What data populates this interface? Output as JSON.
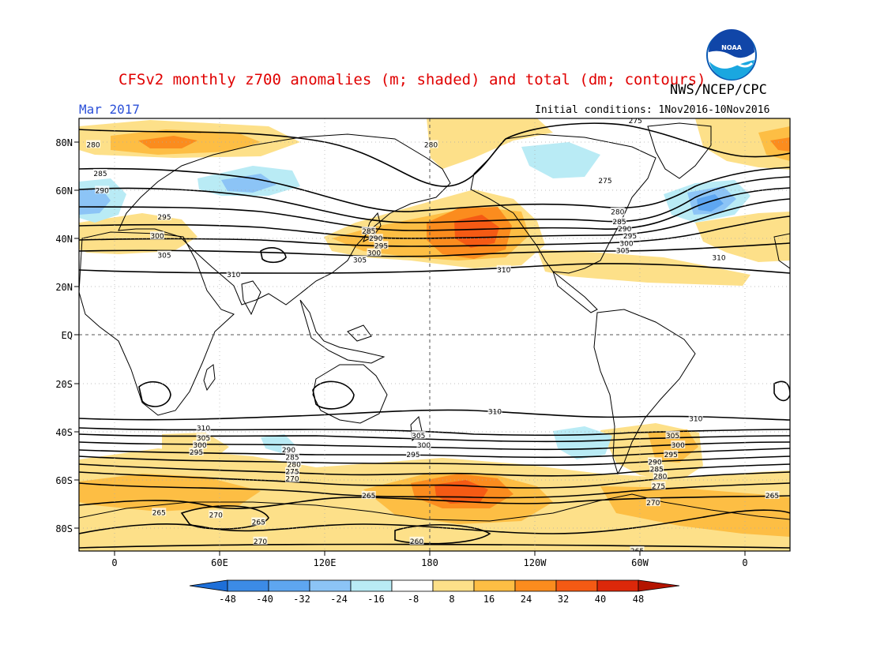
{
  "header": {
    "title": "CFSv2 monthly z700 anomalies (m; shaded) and total (dm; contours)",
    "agency": "NWS/NCEP/CPC",
    "logo_text": "NOAA",
    "month": "Mar 2017",
    "initial_conditions": "Initial conditions: 1Nov2016-10Nov2016"
  },
  "axes": {
    "lat_labels": [
      "80N",
      "60N",
      "40N",
      "20N",
      "EQ",
      "20S",
      "40S",
      "60S",
      "80S"
    ],
    "lat_values": [
      80,
      60,
      40,
      20,
      0,
      -20,
      -40,
      -60,
      -80
    ],
    "lon_labels": [
      "0",
      "60E",
      "120E",
      "180",
      "120W",
      "60W",
      "0"
    ],
    "lon_values": [
      0,
      60,
      120,
      180,
      240,
      300,
      360
    ],
    "lon_range": [
      -20,
      380
    ],
    "lat_range": [
      -90,
      90
    ]
  },
  "colorbar": {
    "ticks": [
      "-48",
      "-40",
      "-32",
      "-24",
      "-16",
      "-8",
      "8",
      "16",
      "24",
      "32",
      "40",
      "48"
    ],
    "colors": [
      "#1e6fd8",
      "#3c8be6",
      "#5ea6f0",
      "#8cc4f6",
      "#b9ebf5",
      "#ffffff",
      "#fde089",
      "#fdbe44",
      "#fb8c1e",
      "#f55a14",
      "#dc280a",
      "#b41400"
    ]
  },
  "contour_labels": [
    {
      "text": "280",
      "lon": -12,
      "lat": 79
    },
    {
      "text": "285",
      "lon": -8,
      "lat": 67
    },
    {
      "text": "290",
      "lon": -7,
      "lat": 60
    },
    {
      "text": "295",
      "lon": 28,
      "lat": 49
    },
    {
      "text": "300",
      "lon": 24,
      "lat": 41
    },
    {
      "text": "305",
      "lon": 28,
      "lat": 33
    },
    {
      "text": "310",
      "lon": 67,
      "lat": 25
    },
    {
      "text": "280",
      "lon": 178,
      "lat": 79
    },
    {
      "text": "285",
      "lon": 143,
      "lat": 43
    },
    {
      "text": "290",
      "lon": 147,
      "lat": 40
    },
    {
      "text": "295",
      "lon": 150,
      "lat": 37
    },
    {
      "text": "300",
      "lon": 146,
      "lat": 34
    },
    {
      "text": "305",
      "lon": 138,
      "lat": 31
    },
    {
      "text": "310",
      "lon": 219,
      "lat": 27
    },
    {
      "text": "275",
      "lon": 276,
      "lat": 64
    },
    {
      "text": "280",
      "lon": 283,
      "lat": 51
    },
    {
      "text": "285",
      "lon": 284,
      "lat": 47
    },
    {
      "text": "290",
      "lon": 287,
      "lat": 44
    },
    {
      "text": "295",
      "lon": 290,
      "lat": 41
    },
    {
      "text": "300",
      "lon": 288,
      "lat": 38
    },
    {
      "text": "305",
      "lon": 286,
      "lat": 35
    },
    {
      "text": "310",
      "lon": 340,
      "lat": 32
    },
    {
      "text": "275",
      "lon": 293,
      "lat": 89
    },
    {
      "text": "310",
      "lon": 50,
      "lat": -39
    },
    {
      "text": "305",
      "lon": 50,
      "lat": -43
    },
    {
      "text": "300",
      "lon": 48,
      "lat": -46
    },
    {
      "text": "295",
      "lon": 46,
      "lat": -49
    },
    {
      "text": "290",
      "lon": 98,
      "lat": -48
    },
    {
      "text": "285",
      "lon": 100,
      "lat": -51
    },
    {
      "text": "280",
      "lon": 101,
      "lat": -54
    },
    {
      "text": "275",
      "lon": 100,
      "lat": -57
    },
    {
      "text": "270",
      "lon": 100,
      "lat": -60
    },
    {
      "text": "265",
      "lon": 143,
      "lat": -67
    },
    {
      "text": "265",
      "lon": 25,
      "lat": -74
    },
    {
      "text": "270",
      "lon": 57,
      "lat": -75
    },
    {
      "text": "265",
      "lon": 81,
      "lat": -78
    },
    {
      "text": "270",
      "lon": 82,
      "lat": -86
    },
    {
      "text": "260",
      "lon": 170,
      "lat": -86
    },
    {
      "text": "265",
      "lon": 294,
      "lat": -90
    },
    {
      "text": "310",
      "lon": 214,
      "lat": -32
    },
    {
      "text": "305",
      "lon": 171,
      "lat": -42
    },
    {
      "text": "300",
      "lon": 174,
      "lat": -46
    },
    {
      "text": "295",
      "lon": 168,
      "lat": -50
    },
    {
      "text": "310",
      "lon": 327,
      "lat": -35
    },
    {
      "text": "305",
      "lon": 314,
      "lat": -42
    },
    {
      "text": "300",
      "lon": 317,
      "lat": -46
    },
    {
      "text": "295",
      "lon": 313,
      "lat": -50
    },
    {
      "text": "290",
      "lon": 304,
      "lat": -53
    },
    {
      "text": "285",
      "lon": 305,
      "lat": -56
    },
    {
      "text": "280",
      "lon": 307,
      "lat": -59
    },
    {
      "text": "275",
      "lon": 306,
      "lat": -63
    },
    {
      "text": "270",
      "lon": 303,
      "lat": -70
    },
    {
      "text": "265",
      "lon": 370,
      "lat": -67
    }
  ]
}
